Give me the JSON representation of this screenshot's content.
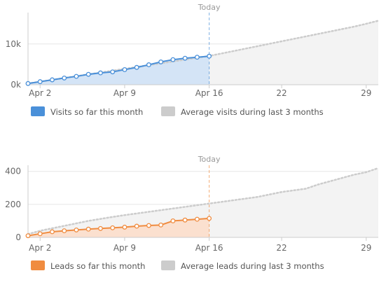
{
  "chart_data": [
    {
      "type": "area",
      "today_label": "Today",
      "today_x": 16,
      "xlim": [
        1,
        30
      ],
      "ylim": [
        0,
        17000
      ],
      "x_ticks": [
        {
          "x": 2,
          "label": "Apr 2"
        },
        {
          "x": 9,
          "label": "Apr 9"
        },
        {
          "x": 16,
          "label": "Apr 16"
        },
        {
          "x": 22,
          "label": "22"
        },
        {
          "x": 29,
          "label": "29"
        }
      ],
      "y_ticks": [
        {
          "y": 0,
          "label": "0k"
        },
        {
          "y": 10000,
          "label": "10k"
        }
      ],
      "series": [
        {
          "name": "Visits so far this month",
          "color": "#4a90d9",
          "x": [
            1,
            2,
            3,
            4,
            5,
            6,
            7,
            8,
            9,
            10,
            11,
            12,
            13,
            14,
            15,
            16
          ],
          "values": [
            300,
            750,
            1200,
            1650,
            2050,
            2550,
            2900,
            3150,
            3700,
            4250,
            4900,
            5600,
            6150,
            6500,
            6750,
            7000
          ]
        },
        {
          "name": "Average visits during last 3 months",
          "color": "#cccccc",
          "x": [
            1,
            2,
            3,
            4,
            5,
            6,
            7,
            8,
            9,
            10,
            11,
            12,
            13,
            14,
            15,
            16,
            17,
            18,
            19,
            20,
            21,
            22,
            23,
            24,
            25,
            26,
            27,
            28,
            29,
            30
          ],
          "values": [
            300,
            750,
            1200,
            1650,
            2100,
            2550,
            3000,
            3450,
            3900,
            4350,
            4800,
            5250,
            5700,
            6150,
            6600,
            7050,
            7650,
            8250,
            8850,
            9450,
            10050,
            10650,
            11250,
            11850,
            12450,
            13050,
            13650,
            14250,
            14950,
            15700
          ]
        }
      ]
    },
    {
      "type": "area",
      "today_label": "Today",
      "today_x": 16,
      "xlim": [
        1,
        30
      ],
      "ylim": [
        0,
        420
      ],
      "x_ticks": [
        {
          "x": 2,
          "label": "Apr 2"
        },
        {
          "x": 9,
          "label": "Apr 9"
        },
        {
          "x": 16,
          "label": "Apr 16"
        },
        {
          "x": 22,
          "label": "22"
        },
        {
          "x": 29,
          "label": "29"
        }
      ],
      "y_ticks": [
        {
          "y": 0,
          "label": "0"
        },
        {
          "y": 200,
          "label": "200"
        },
        {
          "y": 400,
          "label": "400"
        }
      ],
      "series": [
        {
          "name": "Leads so far this month",
          "color": "#f08c40",
          "x": [
            1,
            2,
            3,
            4,
            5,
            6,
            7,
            8,
            9,
            10,
            11,
            12,
            13,
            14,
            15,
            16
          ],
          "values": [
            10,
            22,
            34,
            40,
            45,
            50,
            54,
            58,
            62,
            68,
            72,
            75,
            100,
            105,
            110,
            115
          ]
        },
        {
          "name": "Average leads during last 3 months",
          "color": "#cccccc",
          "x": [
            1,
            2,
            3,
            4,
            5,
            6,
            7,
            8,
            9,
            10,
            11,
            12,
            13,
            14,
            15,
            16,
            17,
            18,
            19,
            20,
            21,
            22,
            23,
            24,
            25,
            26,
            27,
            28,
            29,
            30
          ],
          "values": [
            20,
            40,
            55,
            70,
            85,
            100,
            112,
            124,
            135,
            145,
            155,
            165,
            175,
            185,
            195,
            205,
            215,
            225,
            235,
            245,
            260,
            275,
            285,
            295,
            320,
            340,
            360,
            380,
            395,
            420
          ]
        }
      ]
    }
  ]
}
